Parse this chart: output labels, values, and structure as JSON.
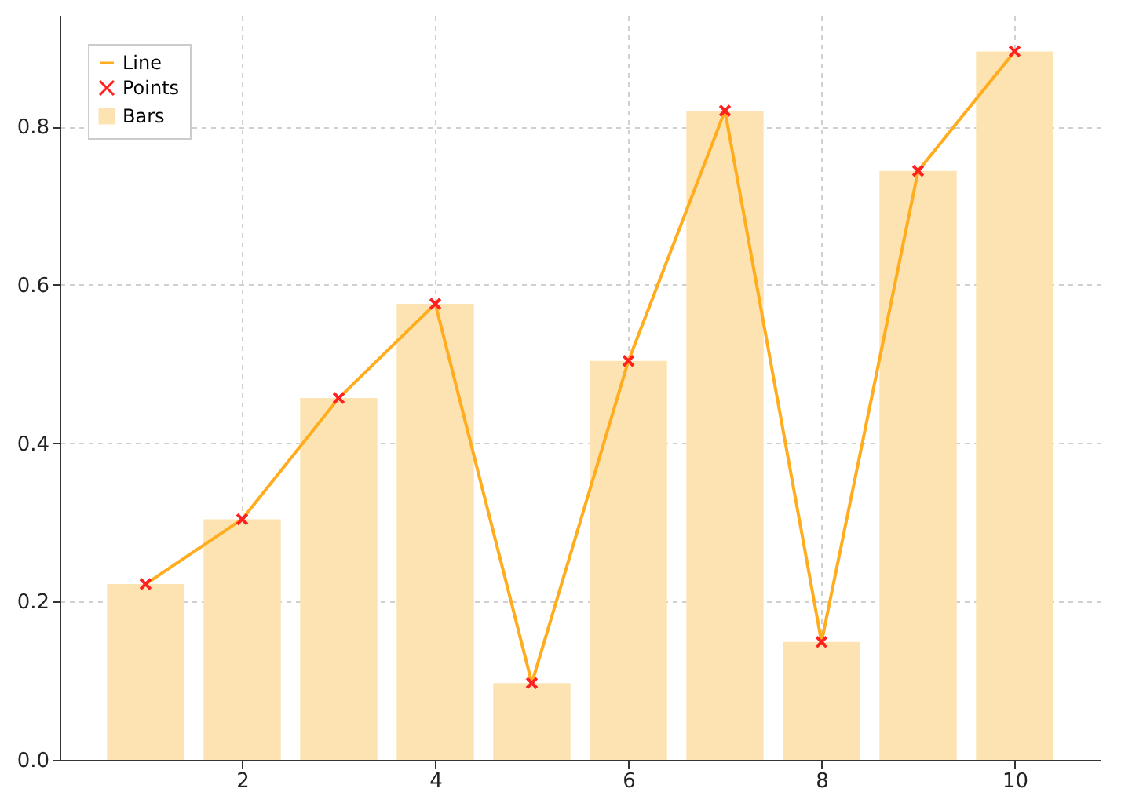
{
  "chart_data": {
    "type": "bar",
    "x": [
      1,
      2,
      3,
      4,
      5,
      6,
      7,
      8,
      9,
      10
    ],
    "series": [
      {
        "name": "Line",
        "type": "line",
        "color": "#ffad1f",
        "values": [
          0.222,
          0.304,
          0.457,
          0.576,
          0.097,
          0.504,
          0.82,
          0.149,
          0.744,
          0.895
        ]
      },
      {
        "name": "Points",
        "type": "scatter",
        "marker": "cross",
        "color": "#ff2020",
        "values": [
          0.222,
          0.304,
          0.457,
          0.576,
          0.097,
          0.504,
          0.82,
          0.149,
          0.744,
          0.895
        ]
      },
      {
        "name": "Bars",
        "color": "#fde3b2",
        "values": [
          0.222,
          0.304,
          0.457,
          0.576,
          0.097,
          0.504,
          0.82,
          0.149,
          0.744,
          0.895
        ]
      }
    ],
    "xlim": [
      0.11,
      10.89
    ],
    "xticks": [
      2,
      4,
      6,
      8,
      10
    ],
    "ylim": [
      0,
      0.94
    ],
    "yticks": [
      {
        "value": 0,
        "label": "0.0"
      },
      0.2,
      0.4,
      0.6,
      0.8
    ],
    "grid": true,
    "legend": "top left"
  }
}
